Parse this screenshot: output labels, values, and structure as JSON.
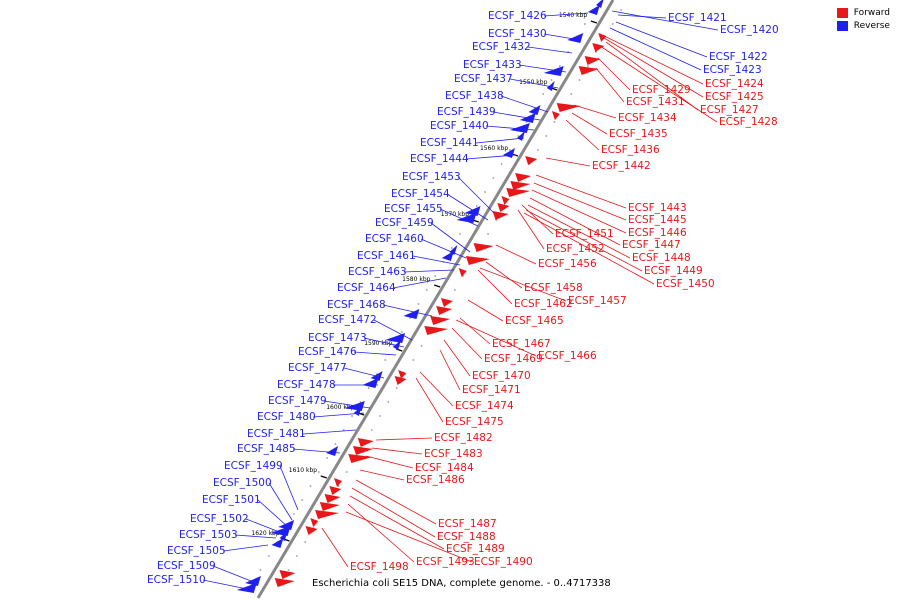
{
  "legend": {
    "forward_label": "Forward",
    "reverse_label": "Reverse",
    "forward_color": "#e8171a",
    "reverse_color": "#1f1ff0"
  },
  "caption": "Escherichia coli SE15 DNA, complete genome. - 0..4717338",
  "backbone_color": "#888888",
  "ticks": [
    "1540 kbp",
    "1550 kbp",
    "1560 kbp",
    "1570 kbp",
    "1580 kbp",
    "1590 kbp",
    "1600 kbp",
    "1610 kbp",
    "1620 kbp"
  ],
  "reverse_labels": [
    "ECSF_1426",
    "ECSF_1430",
    "ECSF_1432",
    "ECSF_1433",
    "ECSF_1437",
    "ECSF_1438",
    "ECSF_1439",
    "ECSF_1440",
    "ECSF_1441",
    "ECSF_1444",
    "ECSF_1453",
    "ECSF_1454",
    "ECSF_1455",
    "ECSF_1459",
    "ECSF_1460",
    "ECSF_1461",
    "ECSF_1463",
    "ECSF_1464",
    "ECSF_1468",
    "ECSF_1472",
    "ECSF_1473",
    "ECSF_1476",
    "ECSF_1477",
    "ECSF_1478",
    "ECSF_1479",
    "ECSF_1480",
    "ECSF_1481",
    "ECSF_1485",
    "ECSF_1499",
    "ECSF_1500",
    "ECSF_1501",
    "ECSF_1502",
    "ECSF_1503",
    "ECSF_1505",
    "ECSF_1509",
    "ECSF_1510",
    "ECSF_1421",
    "ECSF_1420",
    "ECSF_1422",
    "ECSF_1423"
  ],
  "forward_labels": [
    "ECSF_1424",
    "ECSF_1425",
    "ECSF_1427",
    "ECSF_1428",
    "ECSF_1429",
    "ECSF_1431",
    "ECSF_1434",
    "ECSF_1435",
    "ECSF_1436",
    "ECSF_1442",
    "ECSF_1443",
    "ECSF_1445",
    "ECSF_1446",
    "ECSF_1447",
    "ECSF_1448",
    "ECSF_1449",
    "ECSF_1450",
    "ECSF_1451",
    "ECSF_1452",
    "ECSF_1456",
    "ECSF_1458",
    "ECSF_1457",
    "ECSF_1462",
    "ECSF_1465",
    "ECSF_1467",
    "ECSF_1466",
    "ECSF_1469",
    "ECSF_1470",
    "ECSF_1471",
    "ECSF_1474",
    "ECSF_1475",
    "ECSF_1482",
    "ECSF_1483",
    "ECSF_1484",
    "ECSF_1486",
    "ECSF_1487",
    "ECSF_1488",
    "ECSF_1489",
    "ECSF_1493",
    "ECSF_1490",
    "ECSF_1498"
  ]
}
